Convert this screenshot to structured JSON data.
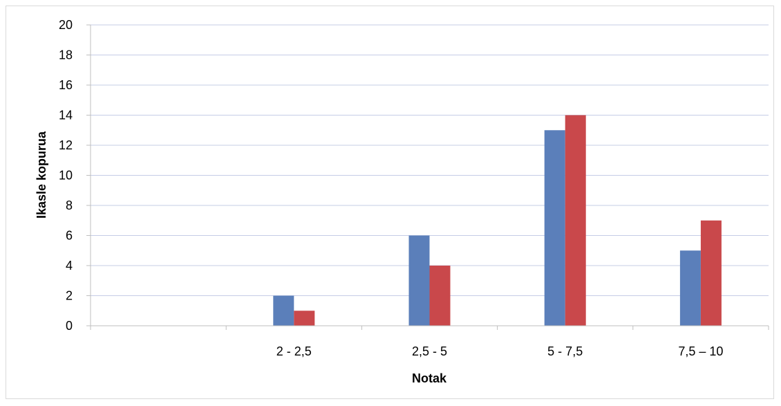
{
  "chart_data": {
    "type": "bar",
    "title": "",
    "xlabel": "Notak",
    "ylabel": "Ikasle kopurua",
    "categories": [
      "",
      "2 - 2,5",
      "2,5 - 5",
      "5 - 7,5",
      "7,5 – 10"
    ],
    "series": [
      {
        "color": "#5b7fba",
        "values": [
          0,
          2,
          6,
          13,
          5
        ]
      },
      {
        "color": "#c9484b",
        "values": [
          0,
          1,
          4,
          14,
          7
        ]
      }
    ],
    "ylim": [
      0,
      20
    ],
    "yticks": [
      "0",
      "2",
      "4",
      "6",
      "8",
      "10",
      "12",
      "14",
      "16",
      "18",
      "20"
    ],
    "grid": true,
    "gridColor": "#c5cce6"
  }
}
